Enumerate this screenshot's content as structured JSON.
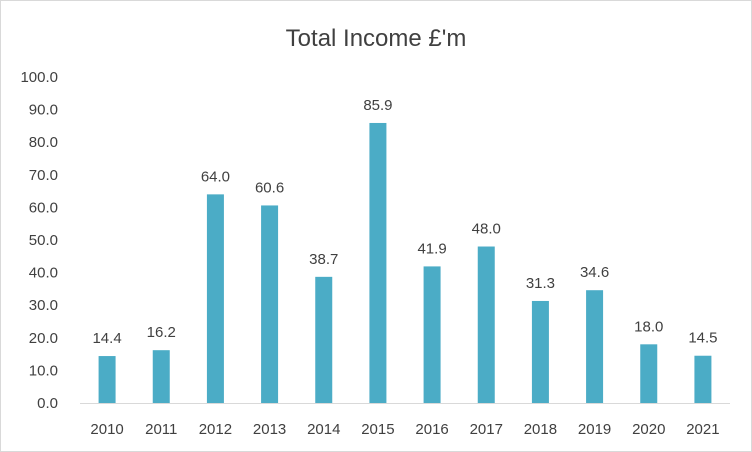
{
  "chart_data": {
    "type": "bar",
    "title": "Total Income £'m",
    "xlabel": "",
    "ylabel": "",
    "categories": [
      "2010",
      "2011",
      "2012",
      "2013",
      "2014",
      "2015",
      "2016",
      "2017",
      "2018",
      "2019",
      "2020",
      "2021"
    ],
    "values": [
      14.4,
      16.2,
      64.0,
      60.6,
      38.7,
      85.9,
      41.9,
      48.0,
      31.3,
      34.6,
      18.0,
      14.5
    ],
    "data_labels": [
      "14.4",
      "16.2",
      "64.0",
      "60.6",
      "38.7",
      "85.9",
      "41.9",
      "48.0",
      "31.3",
      "34.6",
      "18.0",
      "14.5"
    ],
    "ylim": [
      0,
      100
    ],
    "yticks": [
      "0.0",
      "10.0",
      "20.0",
      "30.0",
      "40.0",
      "50.0",
      "60.0",
      "70.0",
      "80.0",
      "90.0",
      "100.0"
    ],
    "grid": false,
    "legend": "none",
    "bar_color": "#4bacc6",
    "axis_color": "#d9d9d9",
    "text_color": "#404040"
  }
}
